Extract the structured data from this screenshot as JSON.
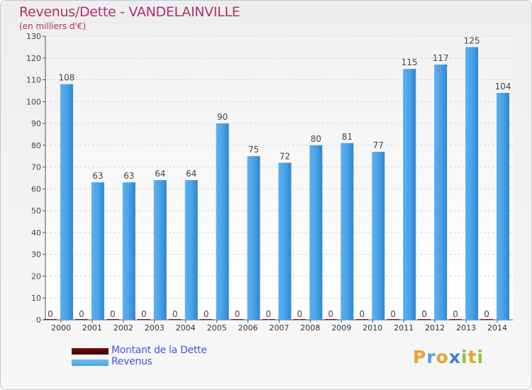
{
  "title": "Revenus/Dette - VANDELAINVILLE",
  "subtitle": "(en milliers d'€)",
  "chart_data": {
    "type": "bar",
    "categories": [
      "2000",
      "2001",
      "2002",
      "2003",
      "2004",
      "2005",
      "2006",
      "2007",
      "2008",
      "2009",
      "2010",
      "2011",
      "2012",
      "2013",
      "2014"
    ],
    "series": [
      {
        "name": "Montant de la Dette",
        "color": "#6b0b0b",
        "values": [
          0,
          0,
          0,
          0,
          0,
          0,
          0,
          0,
          0,
          0,
          0,
          0,
          0,
          0,
          0
        ]
      },
      {
        "name": "Revenus",
        "color": "#4aa3e6",
        "values": [
          108,
          63,
          63,
          64,
          64,
          90,
          75,
          72,
          80,
          81,
          77,
          115,
          117,
          125,
          104
        ]
      }
    ],
    "ylim": [
      0,
      130
    ],
    "yticks": [
      0,
      10,
      20,
      30,
      40,
      50,
      60,
      70,
      80,
      90,
      100,
      110,
      120,
      130
    ],
    "grid": true,
    "legend": "bottom-left"
  },
  "legend": [
    {
      "label": "Montant de la Dette",
      "color": "#6b0b0b"
    },
    {
      "label": "Revenus",
      "color": "#4aa3e6"
    }
  ],
  "logo": {
    "letters": [
      "P",
      "r",
      "o",
      "x",
      "i",
      "t",
      "i"
    ],
    "colors": [
      "#e8a52a",
      "#4aa3e6",
      "#e8a52a",
      "#3a7fd0",
      "#8cc540",
      "#e8a52a",
      "#8cc540"
    ]
  }
}
